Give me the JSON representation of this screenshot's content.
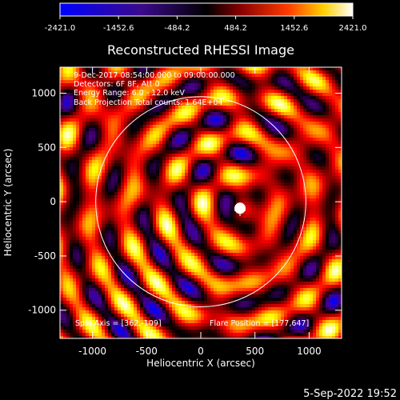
{
  "colorbar": {
    "tick_labels": [
      "-2421.0",
      "-1452.6",
      "-484.2",
      "484.2",
      "1452.6",
      "2421.0"
    ],
    "range": [
      -2421.0,
      2421.0
    ]
  },
  "chart_data": {
    "type": "heatmap",
    "title": "Reconstructed RHESSI Image",
    "xlabel": "Heliocentric X (arcsec)",
    "ylabel": "Heliocentric Y (arcsec)",
    "xlim": [
      -1300,
      1300
    ],
    "ylim": [
      -1260,
      1240
    ],
    "xticks": [
      -1000,
      -500,
      0,
      500,
      1000
    ],
    "yticks": [
      -1000,
      -500,
      0,
      500,
      1000
    ],
    "xtick_labels": [
      "-1000",
      "-500",
      "0",
      "500",
      "1000"
    ],
    "ytick_labels": [
      "-1000",
      "-500",
      "0",
      "500",
      "1000"
    ],
    "info_lines": [
      "9-Dec-2017 08:54:00.000 to 09:00:00.000",
      "Detectors: 6F 8F, Att 0",
      "Energy Range: 6.0 - 12.0 keV",
      "Back Projection    Total counts: 1.64E+04"
    ],
    "footer_left": "Spin Axis = [362,-109]",
    "footer_right": "Flare Position = [177,647]",
    "solar_disk": {
      "center": [
        0,
        0
      ],
      "radius": 970
    },
    "flare_marker": [
      362,
      -80
    ],
    "colorscale": [
      "#0000ff",
      "#4b0082",
      "#000000",
      "#8b0000",
      "#ff0000",
      "#ff8c00",
      "#ffff00",
      "#ffffff"
    ]
  },
  "timestamp": "5-Sep-2022 19:52"
}
